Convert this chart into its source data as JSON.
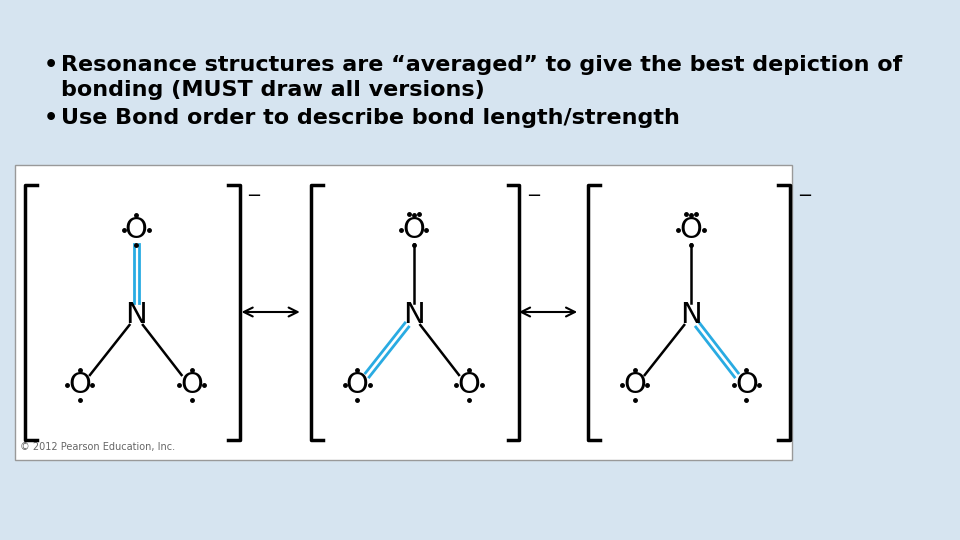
{
  "background_color": "#d6e4f0",
  "slide_bg": "#d6e4f0",
  "white_box_bg": "#ffffff",
  "text_color": "#000000",
  "bullet1_line1": "Resonance structures are “averaged” to give the best depiction of",
  "bullet1_line2": "bonding (MUST draw all versions)",
  "bullet2": "Use Bond order to describe bond length/strength",
  "text_fontsize": 16,
  "cyan_color": "#29abe2",
  "black_color": "#000000",
  "bracket_color": "#000000",
  "charge_minus": "−",
  "copyright": "© 2012 Pearson Education, Inc.",
  "copyright_fontsize": 7
}
